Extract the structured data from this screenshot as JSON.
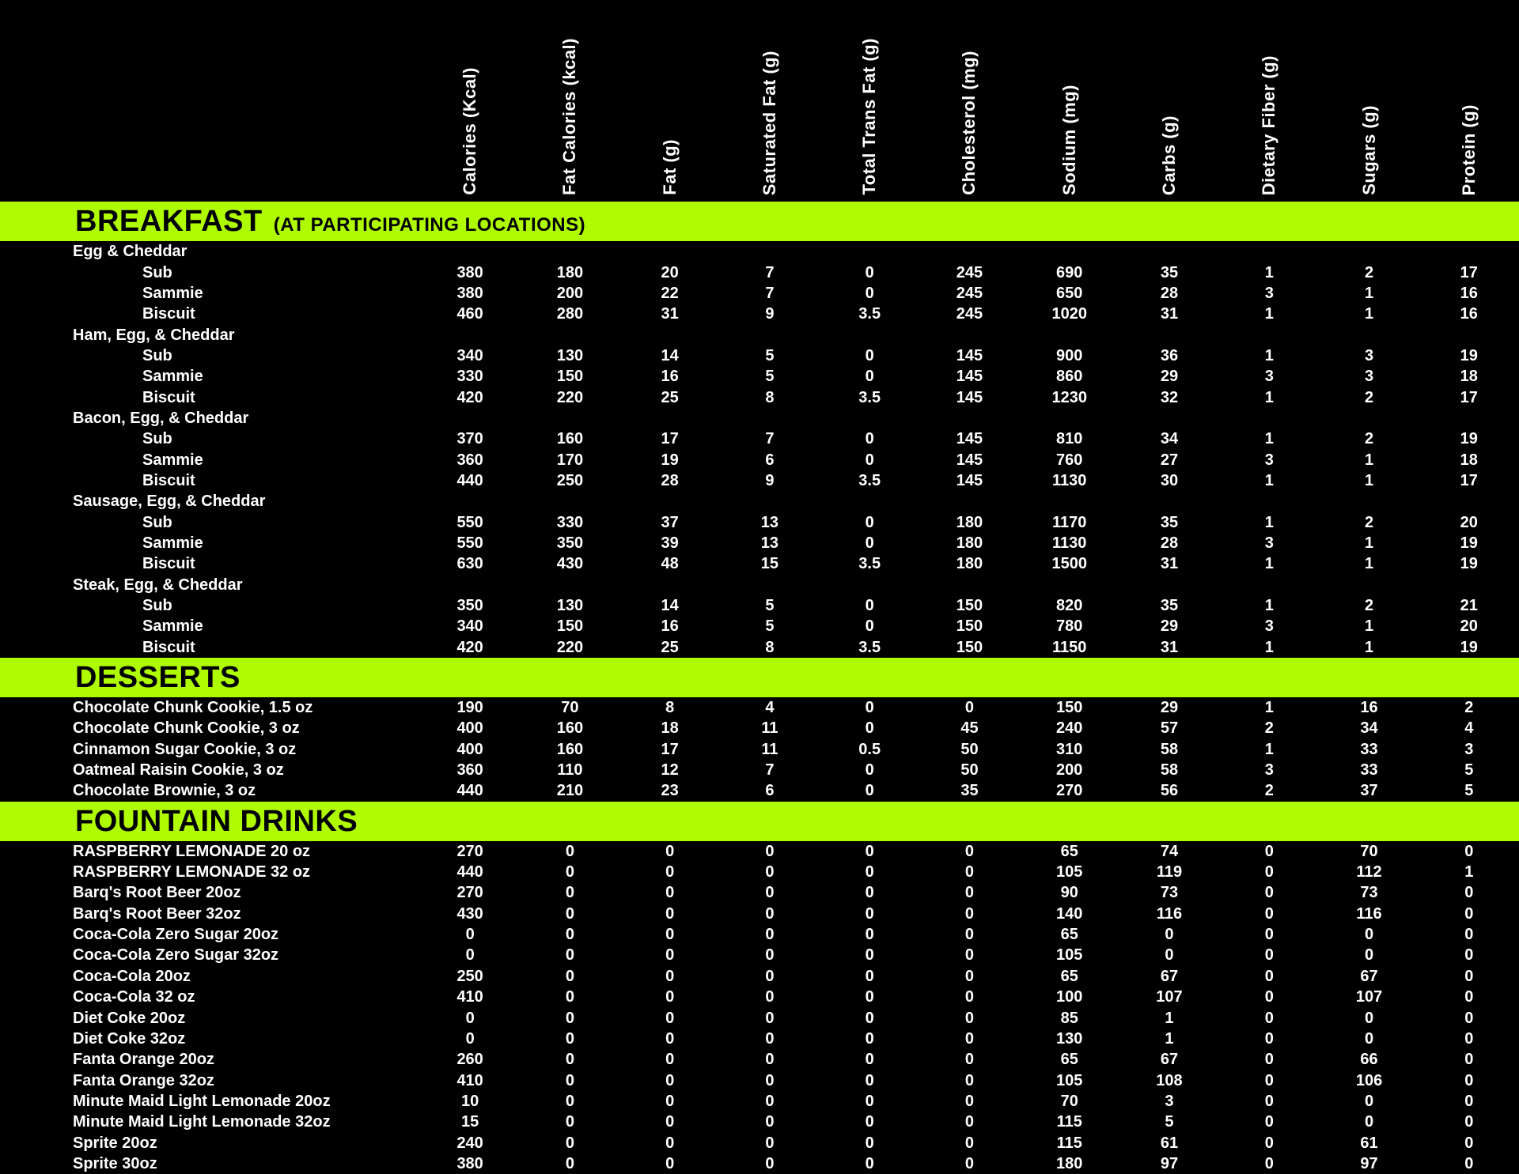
{
  "page": {
    "background_color": "#000000",
    "text_color": "#ffffff",
    "band_color": "#aefb02",
    "band_text_color": "#000000"
  },
  "table": {
    "columns": [
      "Calories (Kcal)",
      "Fat Calories (kcal)",
      "Fat (g)",
      "Saturated Fat (g)",
      "Total Trans Fat (g)",
      "Cholesterol (mg)",
      "Sodium (mg)",
      "Carbs (g)",
      "Dietary Fiber (g)",
      "Sugars (g)",
      "Protein (g)"
    ],
    "sections": [
      {
        "title": "BREAKFAST",
        "subtitle": "(AT PARTICIPATING LOCATIONS)",
        "rows": [
          {
            "type": "group",
            "label": "Egg & Cheddar",
            "values": []
          },
          {
            "type": "item",
            "label": "Sub",
            "values": [
              "380",
              "180",
              "20",
              "7",
              "0",
              "245",
              "690",
              "35",
              "1",
              "2",
              "17"
            ]
          },
          {
            "type": "item",
            "label": "Sammie",
            "values": [
              "380",
              "200",
              "22",
              "7",
              "0",
              "245",
              "650",
              "28",
              "3",
              "1",
              "16"
            ]
          },
          {
            "type": "item",
            "label": "Biscuit",
            "values": [
              "460",
              "280",
              "31",
              "9",
              "3.5",
              "245",
              "1020",
              "31",
              "1",
              "1",
              "16"
            ]
          },
          {
            "type": "group",
            "label": "Ham, Egg, & Cheddar",
            "values": []
          },
          {
            "type": "item",
            "label": "Sub",
            "values": [
              "340",
              "130",
              "14",
              "5",
              "0",
              "145",
              "900",
              "36",
              "1",
              "3",
              "19"
            ]
          },
          {
            "type": "item",
            "label": "Sammie",
            "values": [
              "330",
              "150",
              "16",
              "5",
              "0",
              "145",
              "860",
              "29",
              "3",
              "3",
              "18"
            ]
          },
          {
            "type": "item",
            "label": "Biscuit",
            "values": [
              "420",
              "220",
              "25",
              "8",
              "3.5",
              "145",
              "1230",
              "32",
              "1",
              "2",
              "17"
            ]
          },
          {
            "type": "group",
            "label": "Bacon, Egg, & Cheddar",
            "values": []
          },
          {
            "type": "item",
            "label": "Sub",
            "values": [
              "370",
              "160",
              "17",
              "7",
              "0",
              "145",
              "810",
              "34",
              "1",
              "2",
              "19"
            ]
          },
          {
            "type": "item",
            "label": "Sammie",
            "values": [
              "360",
              "170",
              "19",
              "6",
              "0",
              "145",
              "760",
              "27",
              "3",
              "1",
              "18"
            ]
          },
          {
            "type": "item",
            "label": "Biscuit",
            "values": [
              "440",
              "250",
              "28",
              "9",
              "3.5",
              "145",
              "1130",
              "30",
              "1",
              "1",
              "17"
            ]
          },
          {
            "type": "group",
            "label": "Sausage, Egg, & Cheddar",
            "values": []
          },
          {
            "type": "item",
            "label": "Sub",
            "values": [
              "550",
              "330",
              "37",
              "13",
              "0",
              "180",
              "1170",
              "35",
              "1",
              "2",
              "20"
            ]
          },
          {
            "type": "item",
            "label": "Sammie",
            "values": [
              "550",
              "350",
              "39",
              "13",
              "0",
              "180",
              "1130",
              "28",
              "3",
              "1",
              "19"
            ]
          },
          {
            "type": "item",
            "label": "Biscuit",
            "values": [
              "630",
              "430",
              "48",
              "15",
              "3.5",
              "180",
              "1500",
              "31",
              "1",
              "1",
              "19"
            ]
          },
          {
            "type": "group",
            "label": "Steak, Egg, & Cheddar",
            "values": []
          },
          {
            "type": "item",
            "label": "Sub",
            "values": [
              "350",
              "130",
              "14",
              "5",
              "0",
              "150",
              "820",
              "35",
              "1",
              "2",
              "21"
            ]
          },
          {
            "type": "item",
            "label": "Sammie",
            "values": [
              "340",
              "150",
              "16",
              "5",
              "0",
              "150",
              "780",
              "29",
              "3",
              "1",
              "20"
            ]
          },
          {
            "type": "item",
            "label": "Biscuit",
            "values": [
              "420",
              "220",
              "25",
              "8",
              "3.5",
              "150",
              "1150",
              "31",
              "1",
              "1",
              "19"
            ]
          }
        ]
      },
      {
        "title": "DESSERTS",
        "subtitle": "",
        "rows": [
          {
            "type": "flat",
            "label": "Chocolate Chunk Cookie, 1.5 oz",
            "values": [
              "190",
              "70",
              "8",
              "4",
              "0",
              "0",
              "150",
              "29",
              "1",
              "16",
              "2"
            ]
          },
          {
            "type": "flat",
            "label": "Chocolate Chunk Cookie, 3 oz",
            "values": [
              "400",
              "160",
              "18",
              "11",
              "0",
              "45",
              "240",
              "57",
              "2",
              "34",
              "4"
            ]
          },
          {
            "type": "flat",
            "label": "Cinnamon Sugar Cookie, 3 oz",
            "values": [
              "400",
              "160",
              "17",
              "11",
              "0.5",
              "50",
              "310",
              "58",
              "1",
              "33",
              "3"
            ]
          },
          {
            "type": "flat",
            "label": "Oatmeal Raisin Cookie, 3 oz",
            "values": [
              "360",
              "110",
              "12",
              "7",
              "0",
              "50",
              "200",
              "58",
              "3",
              "33",
              "5"
            ]
          },
          {
            "type": "flat",
            "label": "Chocolate Brownie, 3 oz",
            "values": [
              "440",
              "210",
              "23",
              "6",
              "0",
              "35",
              "270",
              "56",
              "2",
              "37",
              "5"
            ]
          }
        ]
      },
      {
        "title": "FOUNTAIN DRINKS",
        "subtitle": "",
        "rows": [
          {
            "type": "flat",
            "label": "RASPBERRY LEMONADE 20 oz",
            "values": [
              "270",
              "0",
              "0",
              "0",
              "0",
              "0",
              "65",
              "74",
              "0",
              "70",
              "0"
            ]
          },
          {
            "type": "flat",
            "label": "RASPBERRY LEMONADE 32 oz",
            "values": [
              "440",
              "0",
              "0",
              "0",
              "0",
              "0",
              "105",
              "119",
              "0",
              "112",
              "1"
            ]
          },
          {
            "type": "flat",
            "label": "Barq's Root Beer 20oz",
            "values": [
              "270",
              "0",
              "0",
              "0",
              "0",
              "0",
              "90",
              "73",
              "0",
              "73",
              "0"
            ]
          },
          {
            "type": "flat",
            "label": "Barq's Root Beer 32oz",
            "values": [
              "430",
              "0",
              "0",
              "0",
              "0",
              "0",
              "140",
              "116",
              "0",
              "116",
              "0"
            ]
          },
          {
            "type": "flat",
            "label": "Coca-Cola Zero Sugar 20oz",
            "values": [
              "0",
              "0",
              "0",
              "0",
              "0",
              "0",
              "65",
              "0",
              "0",
              "0",
              "0"
            ]
          },
          {
            "type": "flat",
            "label": "Coca-Cola Zero Sugar 32oz",
            "values": [
              "0",
              "0",
              "0",
              "0",
              "0",
              "0",
              "105",
              "0",
              "0",
              "0",
              "0"
            ]
          },
          {
            "type": "flat",
            "label": "Coca-Cola 20oz",
            "values": [
              "250",
              "0",
              "0",
              "0",
              "0",
              "0",
              "65",
              "67",
              "0",
              "67",
              "0"
            ]
          },
          {
            "type": "flat",
            "label": "Coca-Cola 32 oz",
            "values": [
              "410",
              "0",
              "0",
              "0",
              "0",
              "0",
              "100",
              "107",
              "0",
              "107",
              "0"
            ]
          },
          {
            "type": "flat",
            "label": "Diet Coke 20oz",
            "values": [
              "0",
              "0",
              "0",
              "0",
              "0",
              "0",
              "85",
              "1",
              "0",
              "0",
              "0"
            ]
          },
          {
            "type": "flat",
            "label": "Diet Coke 32oz",
            "values": [
              "0",
              "0",
              "0",
              "0",
              "0",
              "0",
              "130",
              "1",
              "0",
              "0",
              "0"
            ]
          },
          {
            "type": "flat",
            "label": "Fanta Orange 20oz",
            "values": [
              "260",
              "0",
              "0",
              "0",
              "0",
              "0",
              "65",
              "67",
              "0",
              "66",
              "0"
            ]
          },
          {
            "type": "flat",
            "label": "Fanta Orange 32oz",
            "values": [
              "410",
              "0",
              "0",
              "0",
              "0",
              "0",
              "105",
              "108",
              "0",
              "106",
              "0"
            ]
          },
          {
            "type": "flat",
            "label": "Minute Maid Light Lemonade 20oz",
            "values": [
              "10",
              "0",
              "0",
              "0",
              "0",
              "0",
              "70",
              "3",
              "0",
              "0",
              "0"
            ]
          },
          {
            "type": "flat",
            "label": "Minute Maid Light Lemonade 32oz",
            "values": [
              "15",
              "0",
              "0",
              "0",
              "0",
              "0",
              "115",
              "5",
              "0",
              "0",
              "0"
            ]
          },
          {
            "type": "flat",
            "label": "Sprite 20oz",
            "values": [
              "240",
              "0",
              "0",
              "0",
              "0",
              "0",
              "115",
              "61",
              "0",
              "61",
              "0"
            ]
          },
          {
            "type": "flat",
            "label": "Sprite 30oz",
            "values": [
              "380",
              "0",
              "0",
              "0",
              "0",
              "0",
              "180",
              "97",
              "0",
              "97",
              "0"
            ]
          }
        ]
      }
    ]
  }
}
